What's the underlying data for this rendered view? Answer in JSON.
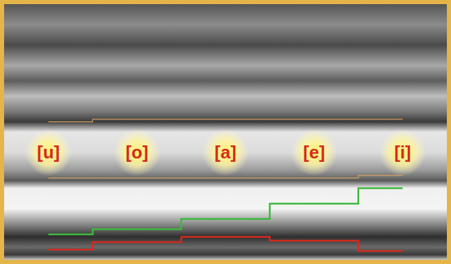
{
  "chart_data": {
    "type": "line",
    "categories": [
      "[u]",
      "[o]",
      "[a]",
      "[e]",
      "[i]"
    ],
    "series": [
      {
        "color": "#d42a1e",
        "values": [
          4,
          7,
          9,
          7.5,
          3.5
        ]
      },
      {
        "color": "#3cb83c",
        "values": [
          10,
          12,
          16,
          22,
          28
        ]
      },
      {
        "color": "#d9a060",
        "values": [
          32,
          32,
          32,
          32,
          33
        ]
      },
      {
        "color": "#d9a060",
        "values": [
          54,
          55,
          55,
          55,
          55
        ]
      }
    ],
    "ylim": [
      0,
      100
    ],
    "line_style": "step",
    "tick_labels": false
  }
}
